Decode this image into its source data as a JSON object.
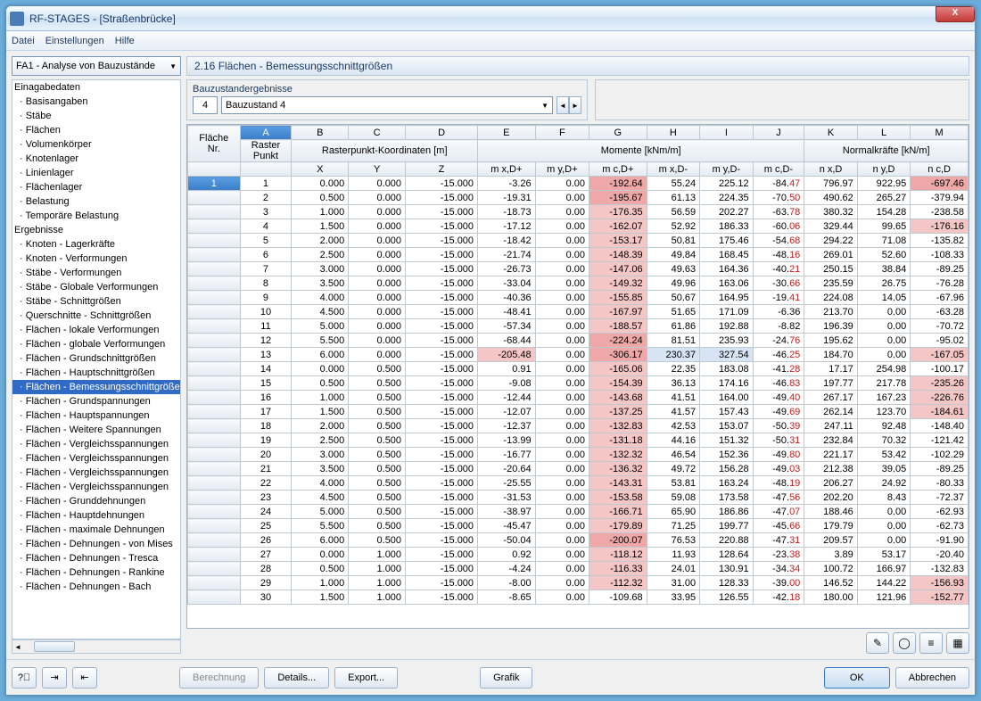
{
  "window": {
    "title": "RF-STAGES - [Straßenbrücke]"
  },
  "menu": [
    "Datei",
    "Einstellungen",
    "Hilfe"
  ],
  "leftDropdown": "FA1 - Analyse von Bauzustände",
  "tree": [
    {
      "t": "Einagabedaten",
      "root": true
    },
    {
      "t": "Basisangaben"
    },
    {
      "t": "Stäbe"
    },
    {
      "t": "Flächen"
    },
    {
      "t": "Volumenkörper"
    },
    {
      "t": "Knotenlager"
    },
    {
      "t": "Linienlager"
    },
    {
      "t": "Flächenlager"
    },
    {
      "t": "Belastung"
    },
    {
      "t": "Temporäre Belastung"
    },
    {
      "t": "Ergebnisse",
      "root": true
    },
    {
      "t": "Knoten - Lagerkräfte"
    },
    {
      "t": "Knoten - Verformungen"
    },
    {
      "t": "Stäbe - Verformungen"
    },
    {
      "t": "Stäbe - Globale Verformungen"
    },
    {
      "t": "Stäbe - Schnittgrößen"
    },
    {
      "t": "Querschnitte - Schnittgrößen"
    },
    {
      "t": "Flächen - lokale Verformungen"
    },
    {
      "t": "Flächen - globale Verformungen"
    },
    {
      "t": "Flächen - Grundschnittgrößen"
    },
    {
      "t": "Flächen - Hauptschnittgrößen"
    },
    {
      "t": "Flächen - Bemessungsschnittgrößen",
      "sel": true
    },
    {
      "t": "Flächen - Grundspannungen"
    },
    {
      "t": "Flächen - Hauptspannungen"
    },
    {
      "t": "Flächen - Weitere Spannungen"
    },
    {
      "t": "Flächen - Vergleichsspannungen"
    },
    {
      "t": "Flächen - Vergleichsspannungen"
    },
    {
      "t": "Flächen - Vergleichsspannungen"
    },
    {
      "t": "Flächen - Vergleichsspannungen"
    },
    {
      "t": "Flächen - Grunddehnungen"
    },
    {
      "t": "Flächen - Hauptdehnungen"
    },
    {
      "t": "Flächen - maximale Dehnungen"
    },
    {
      "t": "Flächen - Dehnungen - von Mises"
    },
    {
      "t": "Flächen - Dehnungen - Tresca"
    },
    {
      "t": "Flächen - Dehnungen - Rankine"
    },
    {
      "t": "Flächen - Dehnungen - Bach"
    }
  ],
  "panelTitle": "2.16 Flächen - Bemessungsschnittgrößen",
  "sub": {
    "label": "Bauzustandergebnisse",
    "num": "4",
    "combo": "Bauzustand 4"
  },
  "colLetters": [
    "A",
    "B",
    "C",
    "D",
    "E",
    "F",
    "G",
    "H",
    "I",
    "J",
    "K",
    "L",
    "M"
  ],
  "group1": "Rasterpunkt-Koordinaten [m]",
  "group2": "Momente [kNm/m]",
  "group3": "Normalkräfte [kN/m]",
  "hdr": {
    "flaeche": "Fläche",
    "nr": "Nr.",
    "raster": "Raster",
    "punkt": "Punkt",
    "x": "X",
    "y": "Y",
    "z": "Z",
    "mxdp": "m x,D+",
    "mydp": "m y,D+",
    "mcdp": "m c,D+",
    "mxdm": "m x,D-",
    "mydm": "m y,D-",
    "mcdm": "m c,D-",
    "nxd": "n x,D",
    "nyd": "n y,D",
    "ncd": "n c,D"
  },
  "rows": [
    {
      "f": "1",
      "p": "1",
      "x": "0.000",
      "y": "0.000",
      "z": "-15.000",
      "e": "-3.26",
      "fv": "0.00",
      "g": "-192.64",
      "gh": 2,
      "h": "55.24",
      "i": "225.12",
      "j": "-84.47",
      "jr": 1,
      "k": "796.97",
      "l": "922.95",
      "m": "-697.46",
      "mh": 2
    },
    {
      "p": "2",
      "x": "0.500",
      "y": "0.000",
      "z": "-15.000",
      "e": "-19.31",
      "fv": "0.00",
      "g": "-195.67",
      "gh": 2,
      "h": "61.13",
      "i": "224.35",
      "j": "-70.50",
      "jr": 1,
      "k": "490.62",
      "l": "265.27",
      "m": "-379.94"
    },
    {
      "p": "3",
      "x": "1.000",
      "y": "0.000",
      "z": "-15.000",
      "e": "-18.73",
      "fv": "0.00",
      "g": "-176.35",
      "gh": 1,
      "h": "56.59",
      "i": "202.27",
      "j": "-63.78",
      "jr": 1,
      "k": "380.32",
      "l": "154.28",
      "m": "-238.58"
    },
    {
      "p": "4",
      "x": "1.500",
      "y": "0.000",
      "z": "-15.000",
      "e": "-17.12",
      "fv": "0.00",
      "g": "-162.07",
      "gh": 1,
      "h": "52.92",
      "i": "186.33",
      "j": "-60.06",
      "jr": 1,
      "k": "329.44",
      "l": "99.65",
      "m": "-176.16",
      "mh": 1
    },
    {
      "p": "5",
      "x": "2.000",
      "y": "0.000",
      "z": "-15.000",
      "e": "-18.42",
      "fv": "0.00",
      "g": "-153.17",
      "gh": 1,
      "h": "50.81",
      "i": "175.46",
      "j": "-54.68",
      "jr": 1,
      "k": "294.22",
      "l": "71.08",
      "m": "-135.82"
    },
    {
      "p": "6",
      "x": "2.500",
      "y": "0.000",
      "z": "-15.000",
      "e": "-21.74",
      "fv": "0.00",
      "g": "-148.39",
      "gh": 1,
      "h": "49.84",
      "i": "168.45",
      "j": "-48.16",
      "jr": 1,
      "k": "269.01",
      "l": "52.60",
      "m": "-108.33"
    },
    {
      "p": "7",
      "x": "3.000",
      "y": "0.000",
      "z": "-15.000",
      "e": "-26.73",
      "fv": "0.00",
      "g": "-147.06",
      "gh": 1,
      "h": "49.63",
      "i": "164.36",
      "j": "-40.21",
      "jr": 1,
      "k": "250.15",
      "l": "38.84",
      "m": "-89.25"
    },
    {
      "p": "8",
      "x": "3.500",
      "y": "0.000",
      "z": "-15.000",
      "e": "-33.04",
      "fv": "0.00",
      "g": "-149.32",
      "gh": 1,
      "h": "49.96",
      "i": "163.06",
      "j": "-30.66",
      "jr": 1,
      "k": "235.59",
      "l": "26.75",
      "m": "-76.28"
    },
    {
      "p": "9",
      "x": "4.000",
      "y": "0.000",
      "z": "-15.000",
      "e": "-40.36",
      "fv": "0.00",
      "g": "-155.85",
      "gh": 1,
      "h": "50.67",
      "i": "164.95",
      "j": "-19.41",
      "jr": 1,
      "k": "224.08",
      "l": "14.05",
      "m": "-67.96"
    },
    {
      "p": "10",
      "x": "4.500",
      "y": "0.000",
      "z": "-15.000",
      "e": "-48.41",
      "fv": "0.00",
      "g": "-167.97",
      "gh": 1,
      "h": "51.65",
      "i": "171.09",
      "j": "-6.36",
      "k": "213.70",
      "l": "0.00",
      "m": "-63.28"
    },
    {
      "p": "11",
      "x": "5.000",
      "y": "0.000",
      "z": "-15.000",
      "e": "-57.34",
      "fv": "0.00",
      "g": "-188.57",
      "gh": 1,
      "h": "61.86",
      "i": "192.88",
      "j": "-8.82",
      "k": "196.39",
      "l": "0.00",
      "m": "-70.72"
    },
    {
      "p": "12",
      "x": "5.500",
      "y": "0.000",
      "z": "-15.000",
      "e": "-68.44",
      "fv": "0.00",
      "g": "-224.24",
      "gh": 2,
      "h": "81.51",
      "i": "235.93",
      "j": "-24.76",
      "jr": 1,
      "k": "195.62",
      "l": "0.00",
      "m": "-95.02"
    },
    {
      "p": "13",
      "x": "6.000",
      "y": "0.000",
      "z": "-15.000",
      "e": "-205.48",
      "eh": 1,
      "fv": "0.00",
      "g": "-306.17",
      "gh": 2,
      "h": "230.37",
      "hb": 1,
      "i": "327.54",
      "ib": 1,
      "j": "-46.25",
      "jr": 1,
      "k": "184.70",
      "l": "0.00",
      "m": "-167.05",
      "mh": 1
    },
    {
      "p": "14",
      "x": "0.000",
      "y": "0.500",
      "z": "-15.000",
      "e": "0.91",
      "fv": "0.00",
      "g": "-165.06",
      "gh": 1,
      "h": "22.35",
      "i": "183.08",
      "j": "-41.28",
      "jr": 1,
      "k": "17.17",
      "l": "254.98",
      "m": "-100.17"
    },
    {
      "p": "15",
      "x": "0.500",
      "y": "0.500",
      "z": "-15.000",
      "e": "-9.08",
      "fv": "0.00",
      "g": "-154.39",
      "gh": 1,
      "h": "36.13",
      "i": "174.16",
      "j": "-46.83",
      "jr": 1,
      "k": "197.77",
      "l": "217.78",
      "m": "-235.26",
      "mh": 1
    },
    {
      "p": "16",
      "x": "1.000",
      "y": "0.500",
      "z": "-15.000",
      "e": "-12.44",
      "fv": "0.00",
      "g": "-143.68",
      "gh": 1,
      "h": "41.51",
      "i": "164.00",
      "j": "-49.40",
      "jr": 1,
      "k": "267.17",
      "l": "167.23",
      "m": "-226.76",
      "mh": 1
    },
    {
      "p": "17",
      "x": "1.500",
      "y": "0.500",
      "z": "-15.000",
      "e": "-12.07",
      "fv": "0.00",
      "g": "-137.25",
      "gh": 1,
      "h": "41.57",
      "i": "157.43",
      "j": "-49.69",
      "jr": 1,
      "k": "262.14",
      "l": "123.70",
      "m": "-184.61",
      "mh": 1
    },
    {
      "p": "18",
      "x": "2.000",
      "y": "0.500",
      "z": "-15.000",
      "e": "-12.37",
      "fv": "0.00",
      "g": "-132.83",
      "gh": 1,
      "h": "42.53",
      "i": "153.07",
      "j": "-50.39",
      "jr": 1,
      "k": "247.11",
      "l": "92.48",
      "m": "-148.40"
    },
    {
      "p": "19",
      "x": "2.500",
      "y": "0.500",
      "z": "-15.000",
      "e": "-13.99",
      "fv": "0.00",
      "g": "-131.18",
      "gh": 1,
      "h": "44.16",
      "i": "151.32",
      "j": "-50.31",
      "jr": 1,
      "k": "232.84",
      "l": "70.32",
      "m": "-121.42"
    },
    {
      "p": "20",
      "x": "3.000",
      "y": "0.500",
      "z": "-15.000",
      "e": "-16.77",
      "fv": "0.00",
      "g": "-132.32",
      "gh": 1,
      "h": "46.54",
      "i": "152.36",
      "j": "-49.80",
      "jr": 1,
      "k": "221.17",
      "l": "53.42",
      "m": "-102.29"
    },
    {
      "p": "21",
      "x": "3.500",
      "y": "0.500",
      "z": "-15.000",
      "e": "-20.64",
      "fv": "0.00",
      "g": "-136.32",
      "gh": 1,
      "h": "49.72",
      "i": "156.28",
      "j": "-49.03",
      "jr": 1,
      "k": "212.38",
      "l": "39.05",
      "m": "-89.25"
    },
    {
      "p": "22",
      "x": "4.000",
      "y": "0.500",
      "z": "-15.000",
      "e": "-25.55",
      "fv": "0.00",
      "g": "-143.31",
      "gh": 1,
      "h": "53.81",
      "i": "163.24",
      "j": "-48.19",
      "jr": 1,
      "k": "206.27",
      "l": "24.92",
      "m": "-80.33"
    },
    {
      "p": "23",
      "x": "4.500",
      "y": "0.500",
      "z": "-15.000",
      "e": "-31.53",
      "fv": "0.00",
      "g": "-153.58",
      "gh": 1,
      "h": "59.08",
      "i": "173.58",
      "j": "-47.56",
      "jr": 1,
      "k": "202.20",
      "l": "8.43",
      "m": "-72.37"
    },
    {
      "p": "24",
      "x": "5.000",
      "y": "0.500",
      "z": "-15.000",
      "e": "-38.97",
      "fv": "0.00",
      "g": "-166.71",
      "gh": 1,
      "h": "65.90",
      "i": "186.86",
      "j": "-47.07",
      "jr": 1,
      "k": "188.46",
      "l": "0.00",
      "m": "-62.93"
    },
    {
      "p": "25",
      "x": "5.500",
      "y": "0.500",
      "z": "-15.000",
      "e": "-45.47",
      "fv": "0.00",
      "g": "-179.89",
      "gh": 1,
      "h": "71.25",
      "i": "199.77",
      "j": "-45.66",
      "jr": 1,
      "k": "179.79",
      "l": "0.00",
      "m": "-62.73"
    },
    {
      "p": "26",
      "x": "6.000",
      "y": "0.500",
      "z": "-15.000",
      "e": "-50.04",
      "fv": "0.00",
      "g": "-200.07",
      "gh": 2,
      "h": "76.53",
      "i": "220.88",
      "j": "-47.31",
      "jr": 1,
      "k": "209.57",
      "l": "0.00",
      "m": "-91.90"
    },
    {
      "p": "27",
      "x": "0.000",
      "y": "1.000",
      "z": "-15.000",
      "e": "0.92",
      "fv": "0.00",
      "g": "-118.12",
      "gh": 1,
      "h": "11.93",
      "i": "128.64",
      "j": "-23.38",
      "jr": 1,
      "k": "3.89",
      "l": "53.17",
      "m": "-20.40"
    },
    {
      "p": "28",
      "x": "0.500",
      "y": "1.000",
      "z": "-15.000",
      "e": "-4.24",
      "fv": "0.00",
      "g": "-116.33",
      "gh": 1,
      "h": "24.01",
      "i": "130.91",
      "j": "-34.34",
      "jr": 1,
      "k": "100.72",
      "l": "166.97",
      "m": "-132.83"
    },
    {
      "p": "29",
      "x": "1.000",
      "y": "1.000",
      "z": "-15.000",
      "e": "-8.00",
      "fv": "0.00",
      "g": "-112.32",
      "gh": 1,
      "h": "31.00",
      "i": "128.33",
      "j": "-39.00",
      "jr": 1,
      "k": "146.52",
      "l": "144.22",
      "m": "-156.93",
      "mh": 1
    },
    {
      "p": "30",
      "x": "1.500",
      "y": "1.000",
      "z": "-15.000",
      "e": "-8.65",
      "fv": "0.00",
      "g": "-109.68",
      "h": "33.95",
      "i": "126.55",
      "j": "-42.18",
      "jr": 1,
      "k": "180.00",
      "l": "121.96",
      "m": "-152.77",
      "mh": 1
    }
  ],
  "buttons": {
    "berechnung": "Berechnung",
    "details": "Details...",
    "export": "Export...",
    "grafik": "Grafik",
    "ok": "OK",
    "abbrechen": "Abbrechen"
  }
}
